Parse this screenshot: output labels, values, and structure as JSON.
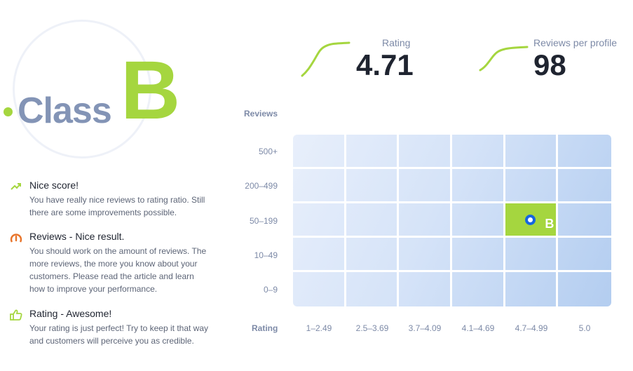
{
  "class_badge": {
    "word": "Class",
    "letter": "B"
  },
  "stats": {
    "rating": {
      "label": "Rating",
      "value": "4.71"
    },
    "reviews_per_profile": {
      "label": "Reviews per profile",
      "value": "98"
    }
  },
  "feedback": [
    {
      "icon": "trend-up-icon",
      "title": "Nice score!",
      "text": "You have really nice reviews to rating ratio. Still there are some improvements possible."
    },
    {
      "icon": "gauge-icon",
      "title": "Reviews - Nice result.",
      "text": "You should work on the amount of reviews. The more reviews, the more you know about your customers. Please read the article and learn how to improve your performance."
    },
    {
      "icon": "thumbs-up-icon",
      "title": "Rating - Awesome!",
      "text": "Your rating is just perfect! Try to keep it that way and customers will perceive you as credible."
    }
  ],
  "matrix": {
    "y_title": "Reviews",
    "x_title": "Rating",
    "rows": [
      "500+",
      "200–499",
      "50–199",
      "10–49",
      "0–9"
    ],
    "cols": [
      "1–2.49",
      "2.5–3.69",
      "3.7–4.09",
      "4.1–4.69",
      "4.7–4.99",
      "5.0"
    ],
    "active": {
      "row": 2,
      "col": 4,
      "label": "B"
    }
  },
  "colors": {
    "accent_green": "#a5d63f",
    "label_gray": "#7d8aa7",
    "marker_blue": "#1565e0"
  }
}
